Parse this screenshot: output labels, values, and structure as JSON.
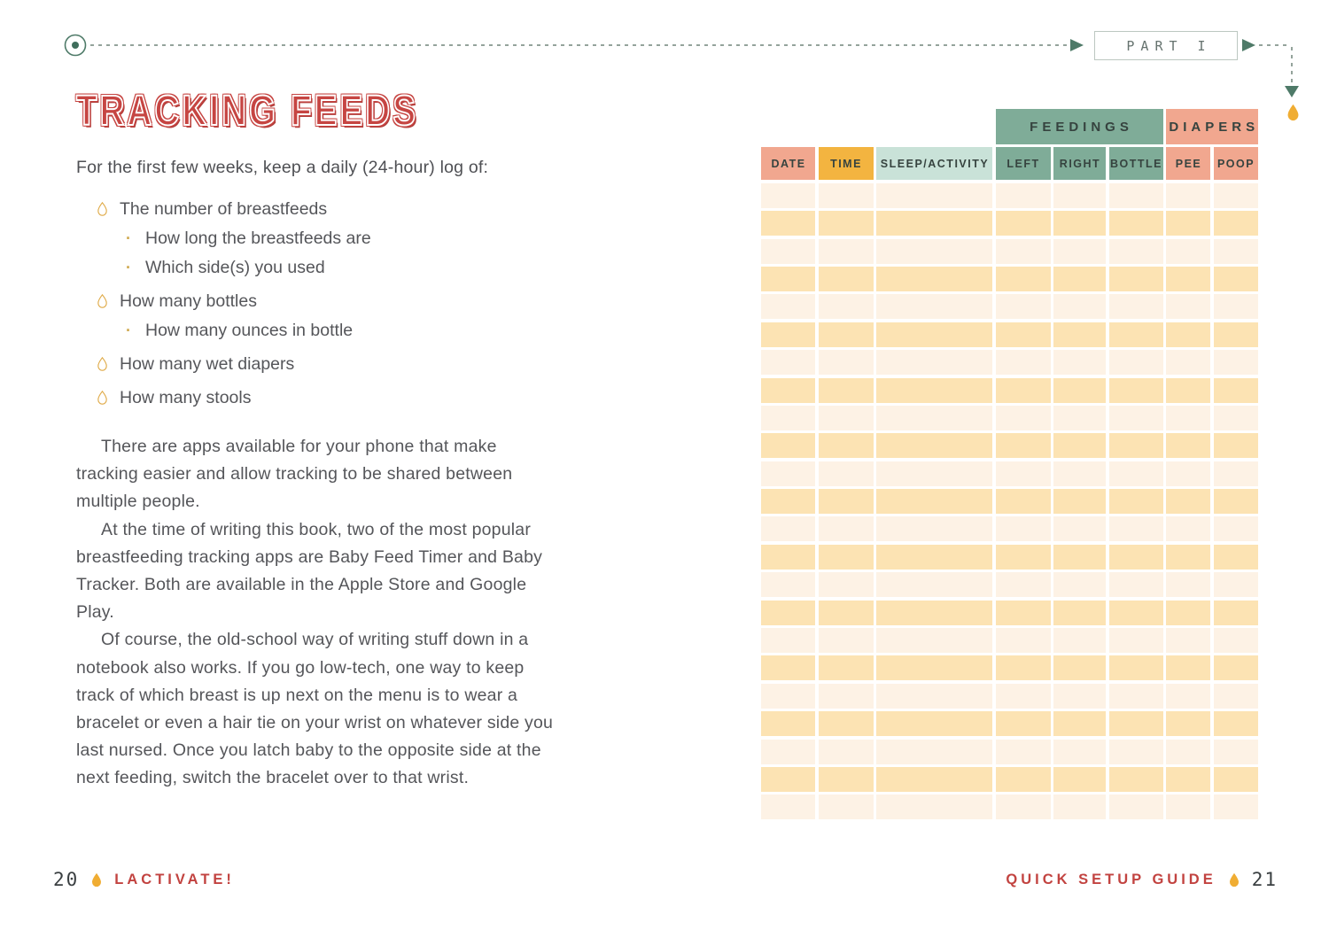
{
  "nav": {
    "part_label": "PART I"
  },
  "left_page": {
    "title": "TRACKING FEEDS",
    "intro": "For the first few weeks, keep a daily (24-hour) log of:",
    "bullets": [
      {
        "level": 1,
        "text": "The number of breastfeeds"
      },
      {
        "level": 2,
        "text": "How long the breastfeeds are"
      },
      {
        "level": 2,
        "text": "Which side(s) you used"
      },
      {
        "level": 1,
        "text": "How many bottles"
      },
      {
        "level": 2,
        "text": "How many ounces in bottle"
      },
      {
        "level": 1,
        "text": "How many wet diapers"
      },
      {
        "level": 1,
        "text": "How many stools"
      }
    ],
    "paragraphs": [
      "There are apps available for your phone that make tracking easier and allow tracking to be shared between multiple people.",
      "At the time of writing this book, two of the most popular breastfeeding tracking apps are Baby Feed Timer and Baby Tracker. Both are available in the Apple Store and Google Play.",
      "Of course, the old-school way of writing stuff down in a notebook also works. If you go low-tech, one way to keep track of which breast is up next on the menu is to wear a bracelet or even a hair tie on your wrist on whatever side you last nursed. Once you latch baby to the opposite side at the next feeding, switch the bracelet over to that wrist."
    ],
    "footer": {
      "page_number": "20",
      "book_title": "LACTIVATE!"
    }
  },
  "right_page": {
    "table": {
      "group_headers": [
        {
          "label": "FEEDINGS",
          "color": "#7fac98",
          "start": 4,
          "span": 3
        },
        {
          "label": "DIAPERS",
          "color": "#f1a78f",
          "start": 7,
          "span": 2
        }
      ],
      "columns": [
        {
          "label": "DATE",
          "color": "#f1a78f"
        },
        {
          "label": "TIME",
          "color": "#f3b440"
        },
        {
          "label": "SLEEP/ACTIVITY",
          "color": "#c9e2d8"
        },
        {
          "label": "LEFT",
          "color": "#7fac98"
        },
        {
          "label": "RIGHT",
          "color": "#7fac98"
        },
        {
          "label": "BOTTLE",
          "color": "#7fac98"
        },
        {
          "label": "PEE",
          "color": "#f1a78f"
        },
        {
          "label": "POOP",
          "color": "#f1a78f"
        }
      ],
      "body_row_count": 23,
      "row_colors": [
        "#fdf2e5",
        "#fce3b3"
      ]
    },
    "footer": {
      "section_title": "QUICK SETUP GUIDE",
      "page_number": "21"
    }
  },
  "colors": {
    "accent_red": "#c64542",
    "nav_green": "#4e7a68",
    "dash_gray": "#94a39b",
    "droplet_gold": "#f0ad33",
    "droplet_outline_gold": "#dfa945",
    "header_text": "#36433f",
    "body_text": "#55565a"
  }
}
